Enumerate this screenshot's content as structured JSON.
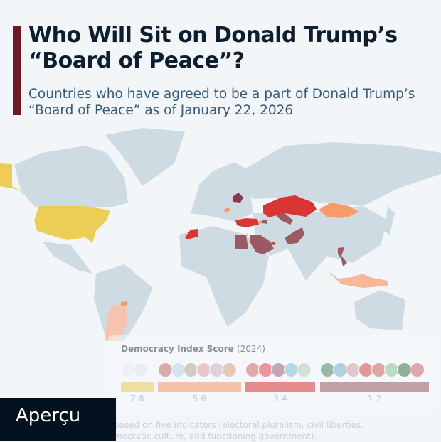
{
  "chart_data": {
    "type": "choropleth map",
    "title": "Who Will Sit on Donald Trump’s “Board of Peace”?",
    "subtitle": "Countries who have agreed to be a part of Donald Trump’s “Board of Peace” as of January 22, 2026",
    "legend": {
      "title": "Democracy Index Score",
      "year": "(2024)",
      "groups": [
        {
          "label": "7-8",
          "color": "#eccd55",
          "flags": [
            "United States",
            "Israel"
          ]
        },
        {
          "label": "5-6",
          "color": "#f99a6a",
          "flags": [
            "Mongolia",
            "Argentina",
            "Hungary",
            "Indonesia",
            "Paraguay",
            "Armenia"
          ]
        },
        {
          "label": "3-4",
          "color": "#d93533",
          "flags": [
            "Morocco",
            "Turkey",
            "Qatar",
            "Kazakhstan",
            "United Arab Emirates"
          ]
        },
        {
          "label": "1-2",
          "color": "#9b5a63",
          "flags": [
            "Pakistan",
            "Azerbaijan",
            "Egypt",
            "Vietnam",
            "Bahrain",
            "Uzbekistan",
            "Saudi Arabia",
            "Belarus"
          ]
        }
      ]
    },
    "countries": [
      {
        "name": "United States",
        "group": "7-8"
      },
      {
        "name": "Israel",
        "group": "7-8"
      },
      {
        "name": "Mongolia",
        "group": "5-6"
      },
      {
        "name": "Argentina",
        "group": "5-6"
      },
      {
        "name": "Hungary",
        "group": "5-6"
      },
      {
        "name": "Indonesia",
        "group": "5-6"
      },
      {
        "name": "Paraguay",
        "group": "5-6"
      },
      {
        "name": "Armenia",
        "group": "5-6"
      },
      {
        "name": "Morocco",
        "group": "3-4"
      },
      {
        "name": "Turkey",
        "group": "3-4"
      },
      {
        "name": "Qatar",
        "group": "3-4"
      },
      {
        "name": "Kazakhstan",
        "group": "3-4"
      },
      {
        "name": "United Arab Emirates",
        "group": "3-4"
      },
      {
        "name": "Pakistan",
        "group": "1-2"
      },
      {
        "name": "Azerbaijan",
        "group": "1-2"
      },
      {
        "name": "Egypt",
        "group": "1-2"
      },
      {
        "name": "Vietnam",
        "group": "1-2"
      },
      {
        "name": "Bahrain",
        "group": "1-2"
      },
      {
        "name": "Uzbekistan",
        "group": "1-2"
      },
      {
        "name": "Saudi Arabia",
        "group": "1-2"
      },
      {
        "name": "Belarus",
        "group": "1-2"
      }
    ]
  },
  "note": {
    "line1": "based on five indicators (electoral pluralism, civil liberties,",
    "line2": "mocratic culture, and functioning government)."
  },
  "brand": "Aperçu",
  "colors": {
    "land": "#cfdbe2",
    "background": "#f2f6f9",
    "accent": "#6e1a26"
  }
}
